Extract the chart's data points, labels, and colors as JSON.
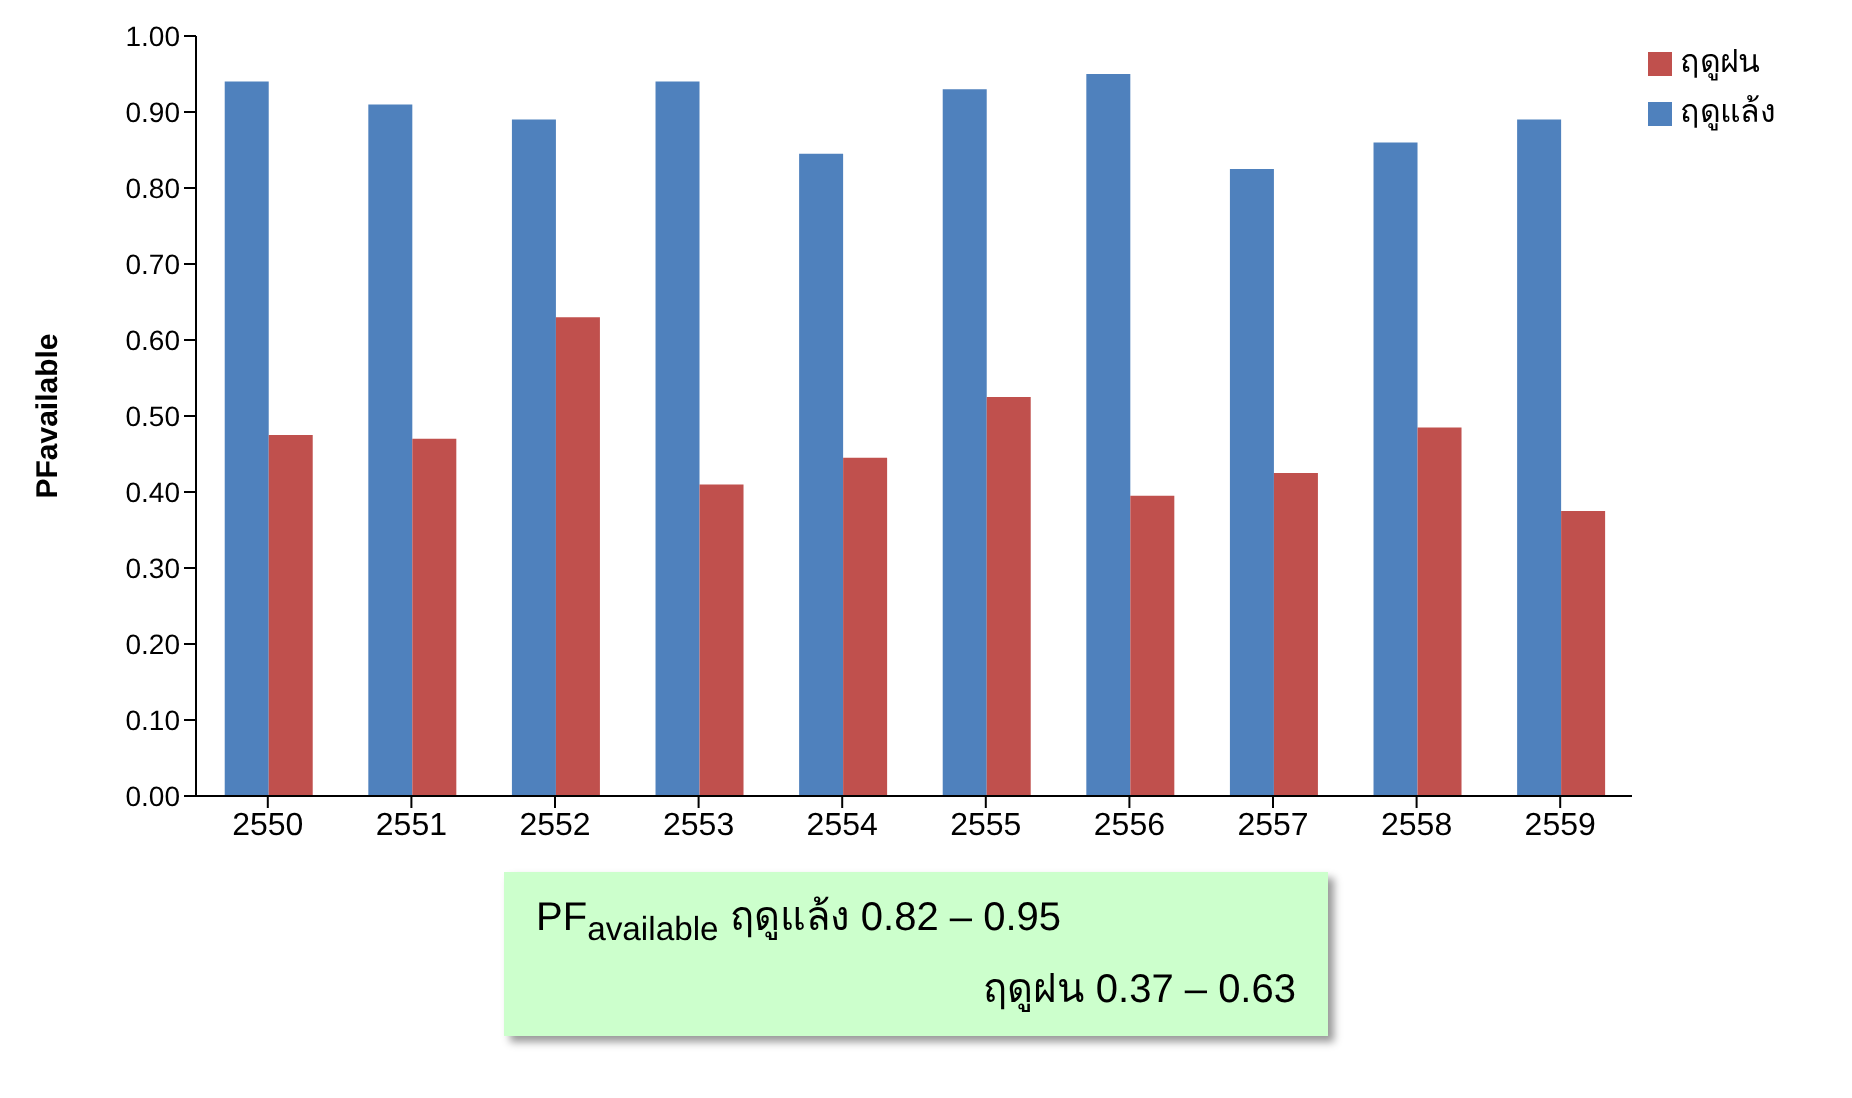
{
  "chart_data": {
    "type": "bar",
    "ylabel": "PFavailable",
    "categories": [
      "2550",
      "2551",
      "2552",
      "2553",
      "2554",
      "2555",
      "2556",
      "2557",
      "2558",
      "2559"
    ],
    "series": [
      {
        "name": "ฤดูแล้ง",
        "color": "#4f81bd",
        "values": [
          0.94,
          0.91,
          0.89,
          0.94,
          0.845,
          0.93,
          0.95,
          0.825,
          0.86,
          0.89
        ]
      },
      {
        "name": "ฤดูฝน",
        "color": "#c0504d",
        "values": [
          0.475,
          0.47,
          0.63,
          0.41,
          0.445,
          0.525,
          0.395,
          0.425,
          0.485,
          0.375
        ]
      }
    ],
    "ylim": [
      0,
      1
    ],
    "yticks": [
      {
        "value": 0,
        "label": "0.00"
      },
      {
        "value": 0.1,
        "label": "0.10"
      },
      {
        "value": 0.2,
        "label": "0.20"
      },
      {
        "value": 0.3,
        "label": "0.30"
      },
      {
        "value": 0.4,
        "label": "0.40"
      },
      {
        "value": 0.5,
        "label": "0.50"
      },
      {
        "value": 0.6,
        "label": "0.60"
      },
      {
        "value": 0.7,
        "label": "0.70"
      },
      {
        "value": 0.8,
        "label": "0.80"
      },
      {
        "value": 0.9,
        "label": "0.90"
      },
      {
        "value": 1,
        "label": "1.00"
      }
    ],
    "grid": false,
    "legend": "top right",
    "annotations": [
      "PF$_{available}$ ฤดูแล้ง 0.82 – 0.95",
      "ฤดูฝน 0.37 – 0.63"
    ]
  }
}
